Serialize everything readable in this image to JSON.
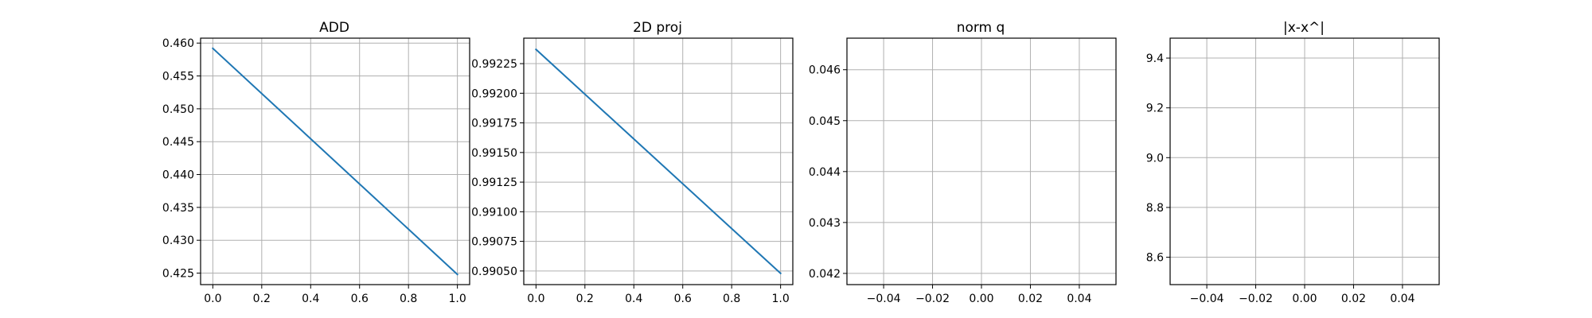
{
  "chart_data": [
    {
      "type": "line",
      "title": "ADD",
      "xlim": [
        -0.05,
        1.05
      ],
      "ylim": [
        0.42325,
        0.46075
      ],
      "xticks": [
        0.0,
        0.2,
        0.4,
        0.6,
        0.8,
        1.0
      ],
      "xtick_labels": [
        "0.0",
        "0.2",
        "0.4",
        "0.6",
        "0.8",
        "1.0"
      ],
      "yticks": [
        0.425,
        0.43,
        0.435,
        0.44,
        0.445,
        0.45,
        0.455,
        0.46
      ],
      "ytick_labels": [
        "0.425",
        "0.430",
        "0.435",
        "0.440",
        "0.445",
        "0.450",
        "0.455",
        "0.460"
      ],
      "grid": true,
      "series": [
        {
          "x": [
            0,
            1
          ],
          "y": [
            0.4592,
            0.4248
          ],
          "color": "#1f77b4"
        }
      ]
    },
    {
      "type": "line",
      "title": "2D proj",
      "xlim": [
        -0.05,
        1.05
      ],
      "ylim": [
        0.990385,
        0.992465
      ],
      "xticks": [
        0.0,
        0.2,
        0.4,
        0.6,
        0.8,
        1.0
      ],
      "xtick_labels": [
        "0.0",
        "0.2",
        "0.4",
        "0.6",
        "0.8",
        "1.0"
      ],
      "yticks": [
        0.9905,
        0.99075,
        0.991,
        0.99125,
        0.9915,
        0.99175,
        0.992,
        0.99225
      ],
      "ytick_labels": [
        "0.99050",
        "0.99075",
        "0.99100",
        "0.99125",
        "0.99150",
        "0.99175",
        "0.99200",
        "0.99225"
      ],
      "grid": true,
      "series": [
        {
          "x": [
            0,
            1
          ],
          "y": [
            0.99237,
            0.99048
          ],
          "color": "#1f77b4"
        }
      ]
    },
    {
      "type": "line",
      "title": "norm q",
      "xlim": [
        -0.055,
        0.055
      ],
      "ylim": [
        0.04178,
        0.04662
      ],
      "xticks": [
        -0.04,
        -0.02,
        0.0,
        0.02,
        0.04
      ],
      "xtick_labels": [
        "−0.04",
        "−0.02",
        "0.00",
        "0.02",
        "0.04"
      ],
      "yticks": [
        0.042,
        0.043,
        0.044,
        0.045,
        0.046
      ],
      "ytick_labels": [
        "0.042",
        "0.043",
        "0.044",
        "0.045",
        "0.046"
      ],
      "grid": true,
      "series": []
    },
    {
      "type": "line",
      "title": "|x-x^|",
      "xlim": [
        -0.055,
        0.055
      ],
      "ylim": [
        8.49,
        9.48
      ],
      "xticks": [
        -0.04,
        -0.02,
        0.0,
        0.02,
        0.04
      ],
      "xtick_labels": [
        "−0.04",
        "−0.02",
        "0.00",
        "0.02",
        "0.04"
      ],
      "yticks": [
        8.6,
        8.8,
        9.0,
        9.2,
        9.4
      ],
      "ytick_labels": [
        "8.6",
        "8.8",
        "9.0",
        "9.2",
        "9.4"
      ],
      "grid": true,
      "series": []
    }
  ]
}
